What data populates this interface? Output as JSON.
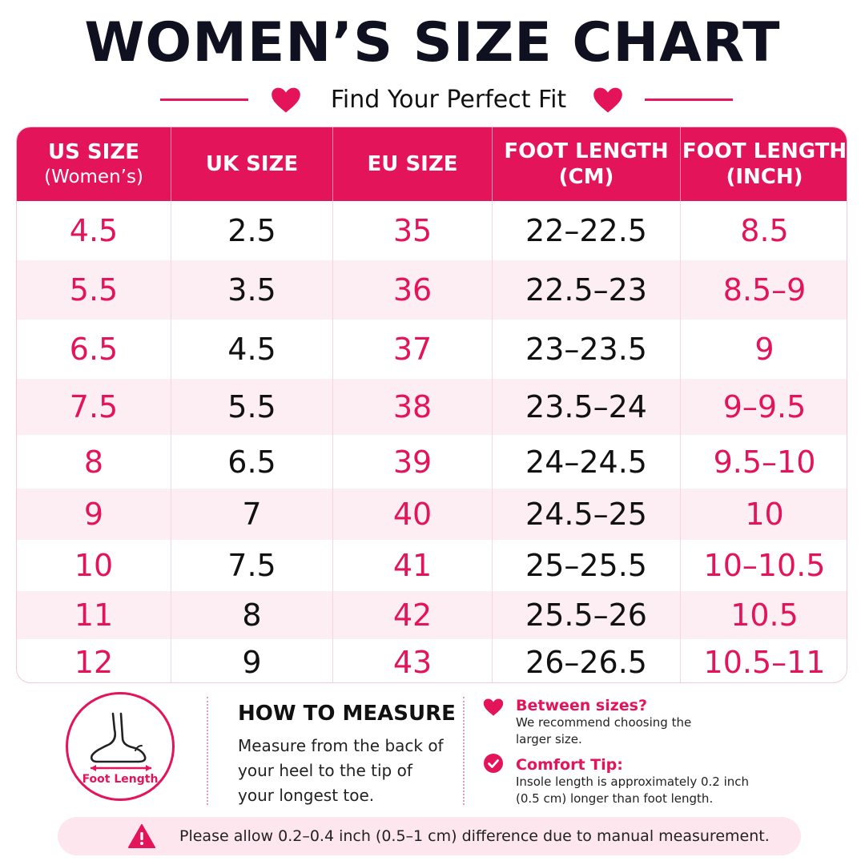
{
  "header": {
    "title": "WOMEN’S SIZE CHART",
    "subtitle": "Find Your Perfect Fit"
  },
  "colors": {
    "accent": "#e3145a",
    "row_shade": "#fdeef3",
    "title_text": "#0f1020"
  },
  "table": {
    "headers": [
      {
        "line1": "US SIZE",
        "line2": "(Women’s)"
      },
      {
        "line1": "UK SIZE",
        "line2": ""
      },
      {
        "line1": "EU SIZE",
        "line2": ""
      },
      {
        "line1": "FOOT LENGTH",
        "line2": "(CM)"
      },
      {
        "line1": "FOOT LENGTH",
        "line2": "(INCH)"
      }
    ],
    "rows": [
      {
        "us": "4.5",
        "uk": "2.5",
        "eu": "35",
        "cm": "22–22.5",
        "inch": "8.5"
      },
      {
        "us": "5.5",
        "uk": "3.5",
        "eu": "36",
        "cm": "22.5–23",
        "inch": "8.5–9"
      },
      {
        "us": "6.5",
        "uk": "4.5",
        "eu": "37",
        "cm": "23–23.5",
        "inch": "9"
      },
      {
        "us": "7.5",
        "uk": "5.5",
        "eu": "38",
        "cm": "23.5–24",
        "inch": "9–9.5"
      },
      {
        "us": "8",
        "uk": "6.5",
        "eu": "39",
        "cm": "24–24.5",
        "inch": "9.5–10"
      },
      {
        "us": "9",
        "uk": "7",
        "eu": "40",
        "cm": "24.5–25",
        "inch": "10"
      },
      {
        "us": "10",
        "uk": "7.5",
        "eu": "41",
        "cm": "25–25.5",
        "inch": "10–10.5"
      },
      {
        "us": "11",
        "uk": "8",
        "eu": "42",
        "cm": "25.5–26",
        "inch": "10.5"
      },
      {
        "us": "12",
        "uk": "9",
        "eu": "43",
        "cm": "26–26.5",
        "inch": "10.5–11"
      }
    ]
  },
  "measure": {
    "foot_label": "Foot Length",
    "title": "HOW TO MEASURE",
    "text": "Measure from the back of your heel to the tip of your longest toe."
  },
  "tips": {
    "between": {
      "icon": "heart-icon",
      "title": "Between sizes?",
      "text": "We recommend choosing the larger size."
    },
    "comfort": {
      "icon": "check-circle-icon",
      "title": "Comfort Tip:",
      "text": "Insole length is approximately 0.2 inch (0.5 cm) longer than foot length."
    }
  },
  "note": {
    "icon": "warning-icon",
    "text": "Please allow 0.2–0.4 inch (0.5–1 cm) difference due to manual measurement."
  }
}
